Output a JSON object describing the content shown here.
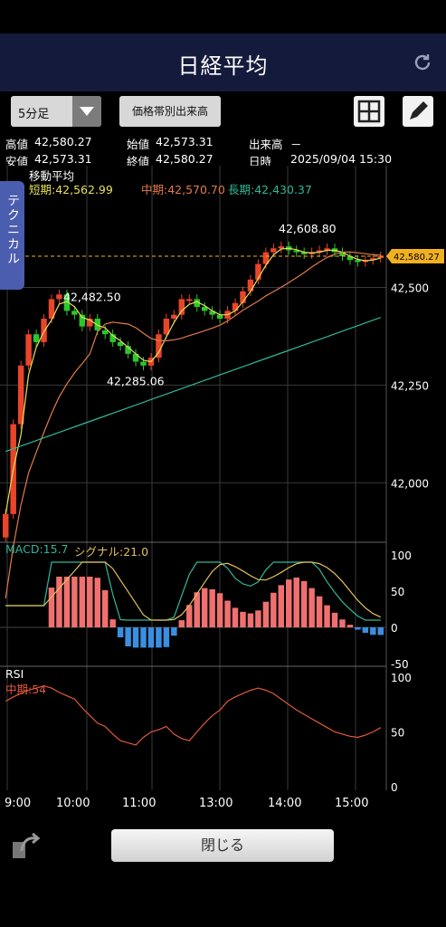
{
  "header": {
    "title": "日経平均"
  },
  "toolbar": {
    "interval": "5分足",
    "volume_label": "価格帯別出来高"
  },
  "info": {
    "high_label": "高値",
    "high": "42,580.27",
    "open_label": "始値",
    "open": "42,573.31",
    "volume_label": "出来高",
    "volume": "－",
    "low_label": "安値",
    "low": "42,573.31",
    "close_label": "終値",
    "close": "42,580.27",
    "date_label": "日時",
    "date": "2025/09/04 15:30"
  },
  "side_tab": {
    "label": "テクニカル"
  },
  "ma_legend": {
    "title": "移動平均",
    "short": "短期:42,562.99",
    "mid": "中期:42,570.70",
    "long": "長期:42,430.37"
  },
  "macd_legend": {
    "macd": "MACD:15.7",
    "signal": "シグナル:21.0"
  },
  "rsi_legend": {
    "title": "RSI",
    "mid": "中期:54"
  },
  "colors": {
    "up": "#e8452a",
    "down": "#2bc82b",
    "short_ma": "#e4e05a",
    "mid_ma": "#e27a4a",
    "long_ma": "#2fb89a",
    "macd": "#2fb89a",
    "signal": "#e4c05a",
    "hist_pos": "#f07070",
    "hist_neg": "#3a8fe0",
    "rsi": "#e25a3a",
    "price_tag": "#f0b020"
  },
  "footer": {
    "close_label": "閉じる"
  },
  "chart_data": {
    "type": "line",
    "price_panel": {
      "ylim": [
        41850,
        42800
      ],
      "y_ticks": [
        "42,500",
        "42,250",
        "42,000"
      ],
      "current_price": "42,580.27",
      "annotations": [
        "42,482.50",
        "42,285.06",
        "42,608.80"
      ],
      "candles_close": [
        41920,
        42150,
        42300,
        42380,
        42360,
        42420,
        42470,
        42482,
        42440,
        42430,
        42400,
        42420,
        42390,
        42380,
        42360,
        42350,
        42330,
        42310,
        42300,
        42320,
        42380,
        42420,
        42430,
        42470,
        42470,
        42450,
        42440,
        42430,
        42420,
        42440,
        42460,
        42490,
        42520,
        42560,
        42590,
        42600,
        42605,
        42595,
        42590,
        42585,
        42590,
        42595,
        42600,
        42590,
        42580,
        42570,
        42565,
        42570,
        42575,
        42580
      ]
    },
    "x_ticks": [
      "9:00",
      "10:00",
      "11:00",
      "13:00",
      "14:00",
      "15:00"
    ],
    "macd_panel": {
      "ylim": [
        -50,
        100
      ],
      "y_ticks": [
        "100",
        "50",
        "0",
        "-50"
      ]
    },
    "rsi_panel": {
      "ylim": [
        0,
        100
      ],
      "y_ticks": [
        "100",
        "50",
        "0"
      ],
      "values": [
        78,
        82,
        85,
        88,
        90,
        92,
        90,
        86,
        83,
        80,
        72,
        65,
        58,
        55,
        48,
        42,
        40,
        38,
        45,
        50,
        52,
        55,
        48,
        44,
        42,
        50,
        58,
        65,
        70,
        78,
        82,
        85,
        88,
        90,
        88,
        85,
        80,
        75,
        70,
        66,
        62,
        58,
        54,
        50,
        48,
        46,
        45,
        47,
        50,
        54
      ]
    }
  }
}
